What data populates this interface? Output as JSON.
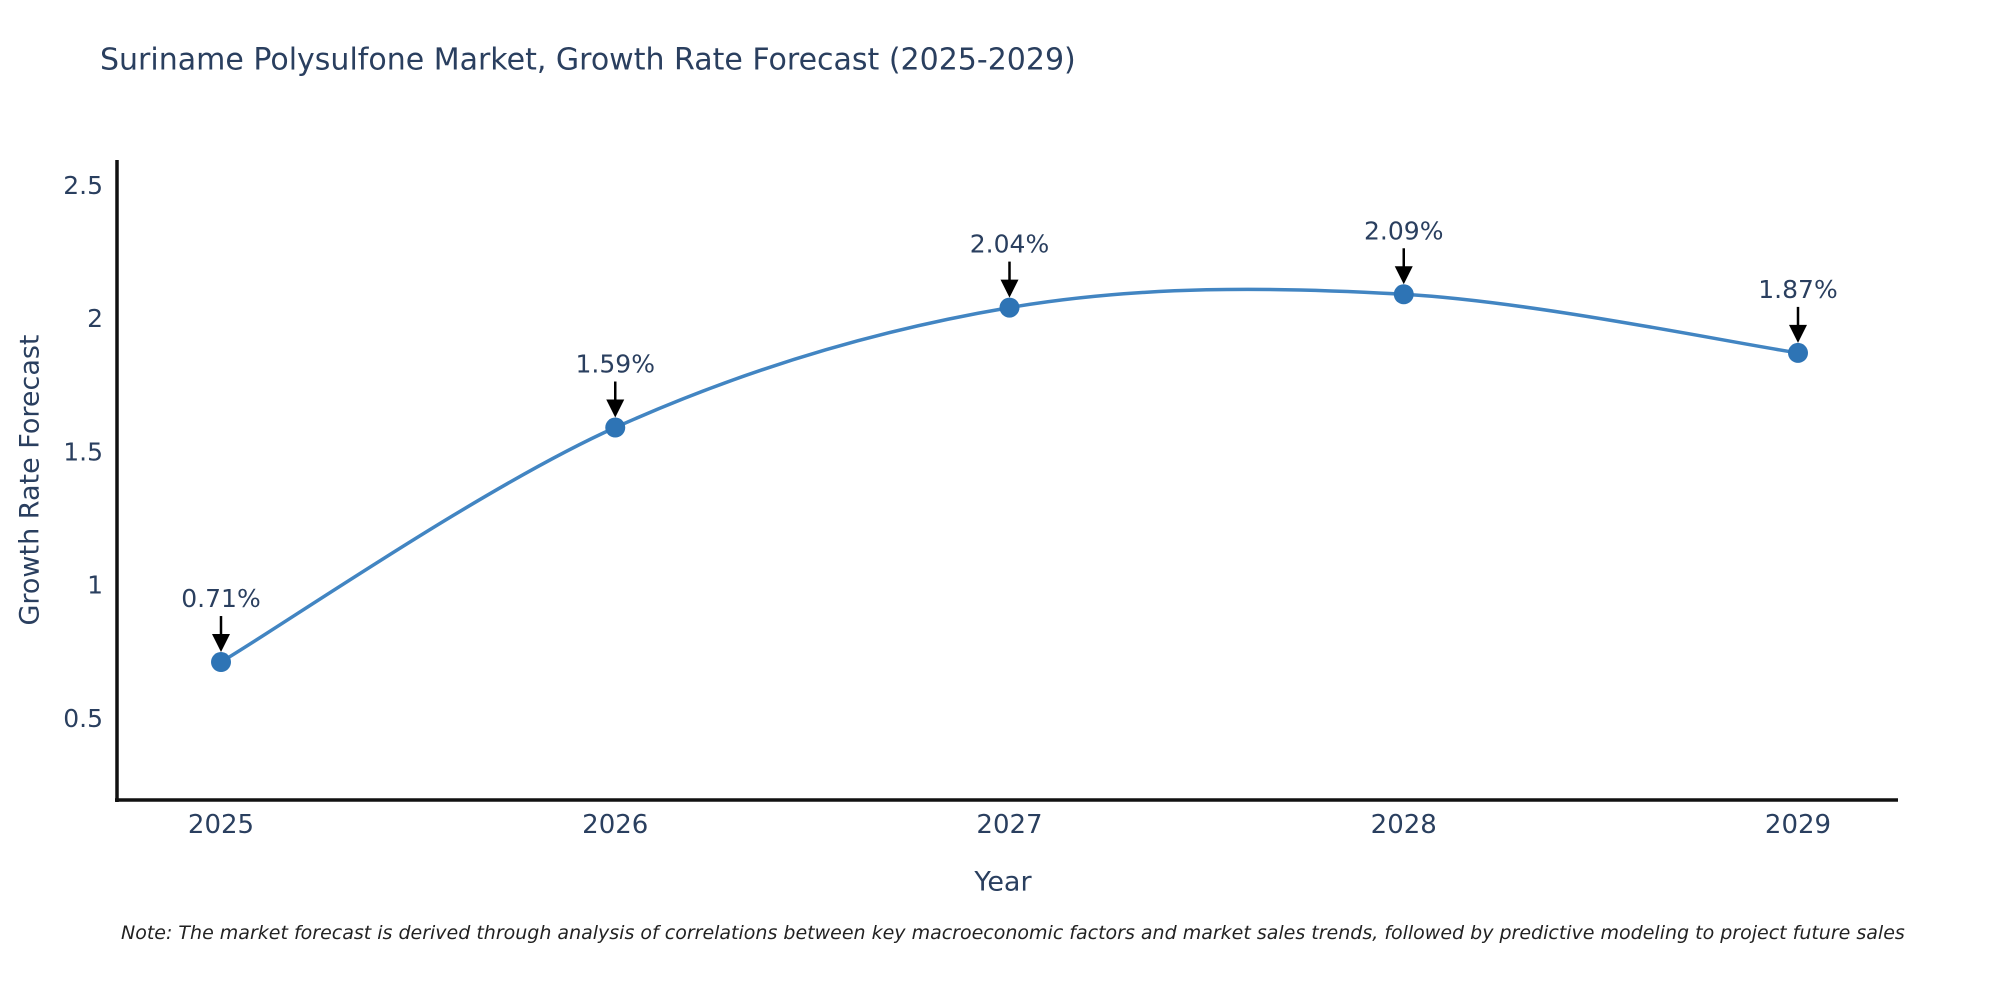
{
  "chart_data": {
    "type": "line",
    "title": "Suriname Polysulfone Market, Growth Rate Forecast (2025-2029)",
    "xlabel": "Year",
    "ylabel": "Growth Rate Forecast",
    "categories": [
      "2025",
      "2026",
      "2027",
      "2028",
      "2029"
    ],
    "values": [
      0.71,
      1.59,
      2.04,
      2.09,
      1.87
    ],
    "point_labels": [
      "0.71%",
      "1.59%",
      "2.04%",
      "2.09%",
      "1.87%"
    ],
    "ytick_labels": [
      "0.5",
      "1",
      "1.5",
      "2",
      "2.5"
    ],
    "ytick_values": [
      0.5,
      1.0,
      1.5,
      2.0,
      2.5
    ],
    "ylim": [
      0.19,
      2.59
    ],
    "grid": false,
    "legend": "none",
    "curve": "spline",
    "line_color": "#4285c2",
    "marker_color": "#2e74b5",
    "axis_color": "#111111",
    "text_color": "#2a3f5f",
    "arrow_color": "#000000"
  },
  "note": {
    "text": "Note: The market forecast is derived through analysis of correlations between key macroeconomic factors and market sales trends, followed by predictive modeling to project future sales"
  }
}
